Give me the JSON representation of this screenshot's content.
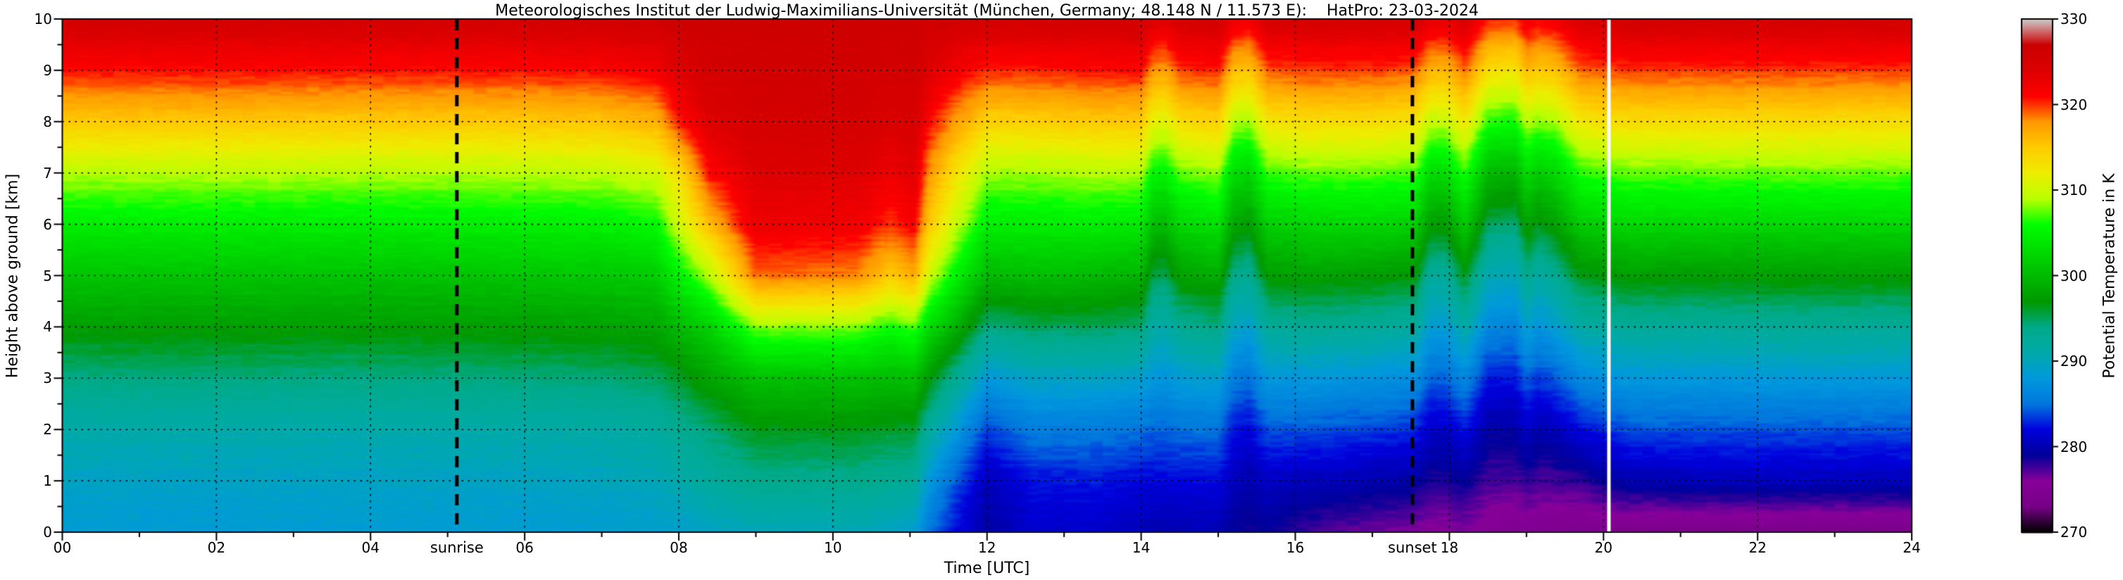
{
  "header": {
    "title": "Meteorologisches Institut der Ludwig-Maximilians-Universität (München, Germany; 48.148 N / 11.573 E):    HatPro: 23-03-2024"
  },
  "chart_data": {
    "type": "heatmap",
    "title": "Meteorologisches Institut der Ludwig-Maximilians-Universität (München, Germany; 48.148 N / 11.573 E):    HatPro: 23-03-2024",
    "xlabel": "Time [UTC]",
    "ylabel": "Height above ground [km]",
    "colorbar_label": "Potential Temperature in K",
    "x_range": [
      0,
      24
    ],
    "y_range": [
      0,
      10
    ],
    "z_range": [
      270,
      330
    ],
    "grid": {
      "x_step": 2,
      "y_step": 1,
      "style": "dotted"
    },
    "x_ticks": [
      {
        "value": 0,
        "label": "00"
      },
      {
        "value": 2,
        "label": "02"
      },
      {
        "value": 4,
        "label": "04"
      },
      {
        "value": 6,
        "label": "06"
      },
      {
        "value": 8,
        "label": "08"
      },
      {
        "value": 10,
        "label": "10"
      },
      {
        "value": 12,
        "label": "12"
      },
      {
        "value": 14,
        "label": "14"
      },
      {
        "value": 16,
        "label": "16"
      },
      {
        "value": 18,
        "label": "18"
      },
      {
        "value": 20,
        "label": "20"
      },
      {
        "value": 22,
        "label": "22"
      },
      {
        "value": 24,
        "label": "24"
      }
    ],
    "y_ticks": [
      0,
      1,
      2,
      3,
      4,
      5,
      6,
      7,
      8,
      9,
      10
    ],
    "colorbar_ticks": [
      270,
      280,
      290,
      300,
      310,
      320,
      330
    ],
    "annotations": {
      "sunrise": {
        "time": 5.12,
        "label": "sunrise"
      },
      "sunset": {
        "time": 17.52,
        "label": "sunset"
      },
      "data_gap_time": 20.07
    },
    "colormap": {
      "name": "nipy-spectral-like",
      "stops": [
        [
          270,
          "#000000"
        ],
        [
          273,
          "#770088"
        ],
        [
          276,
          "#880099"
        ],
        [
          279,
          "#000099"
        ],
        [
          282,
          "#0000DD"
        ],
        [
          285,
          "#0077DD"
        ],
        [
          288,
          "#0099DD"
        ],
        [
          291,
          "#00AAAA"
        ],
        [
          294,
          "#00AA88"
        ],
        [
          297,
          "#009900"
        ],
        [
          300,
          "#00BB00"
        ],
        [
          303,
          "#00DD00"
        ],
        [
          306,
          "#00FF00"
        ],
        [
          309,
          "#BBFF00"
        ],
        [
          312,
          "#EEEE00"
        ],
        [
          315,
          "#FFCC00"
        ],
        [
          318,
          "#FF9900"
        ],
        [
          321,
          "#FF0000"
        ],
        [
          324,
          "#DD0000"
        ],
        [
          327,
          "#CC0000"
        ],
        [
          330,
          "#CCCCCC"
        ]
      ]
    },
    "heights_km": [
      0,
      1,
      2,
      3,
      4,
      5,
      6,
      7,
      8,
      9,
      10
    ],
    "profiles": [
      {
        "t": 0.0,
        "theta": [
          288.5,
          289.5,
          291,
          294,
          297.5,
          301,
          304.5,
          309,
          315,
          321,
          325.5
        ]
      },
      {
        "t": 2.0,
        "theta": [
          288.3,
          289.4,
          291.1,
          294.1,
          297.5,
          301,
          304.6,
          309.1,
          315.1,
          321,
          325.5
        ]
      },
      {
        "t": 4.0,
        "theta": [
          288.5,
          289.5,
          291,
          294,
          297.4,
          300.9,
          304.4,
          309,
          315,
          320.9,
          325.4
        ]
      },
      {
        "t": 6.0,
        "theta": [
          288.5,
          289.6,
          291.2,
          294.2,
          297.6,
          301.1,
          304.6,
          309.1,
          315.1,
          321,
          325.5
        ]
      },
      {
        "t": 7.0,
        "theta": [
          288.7,
          289.8,
          291.4,
          294.4,
          297.8,
          301.3,
          304.8,
          309.3,
          315.3,
          321.2,
          325.6
        ]
      },
      {
        "t": 7.7,
        "theta": [
          288.8,
          290.2,
          292,
          295,
          298.2,
          301.8,
          305.5,
          310.5,
          316.5,
          322,
          326
        ]
      },
      {
        "t": 8.0,
        "theta": [
          289,
          291,
          293,
          296,
          300,
          305,
          310,
          313.5,
          320.5,
          324,
          326.5
        ]
      },
      {
        "t": 8.4,
        "theta": [
          289.5,
          292,
          294.5,
          298,
          302,
          309,
          316,
          321,
          324,
          325.5,
          326.5
        ]
      },
      {
        "t": 9.0,
        "theta": [
          290,
          293.5,
          296.5,
          300.5,
          308,
          319,
          322.5,
          324,
          325.5,
          326,
          326.5
        ]
      },
      {
        "t": 10.3,
        "theta": [
          290,
          293.5,
          296.5,
          300.5,
          308,
          318.5,
          322,
          324,
          325.5,
          326,
          326.5
        ]
      },
      {
        "t": 10.75,
        "theta": [
          289.5,
          293,
          296,
          300,
          306,
          315,
          320,
          322.5,
          324.5,
          325.5,
          326.5
        ]
      },
      {
        "t": 11.05,
        "theta": [
          289,
          292.5,
          296,
          300.5,
          307,
          317,
          321.5,
          323.5,
          325,
          326,
          326.5
        ]
      },
      {
        "t": 11.25,
        "theta": [
          285,
          288,
          292,
          297,
          303,
          310,
          315,
          318,
          321,
          324,
          326
        ]
      },
      {
        "t": 11.6,
        "theta": [
          282,
          284,
          288,
          293,
          299,
          305,
          309.5,
          313,
          317.5,
          322,
          325.8
        ]
      },
      {
        "t": 12.0,
        "theta": [
          279.5,
          280.5,
          283.5,
          288,
          294,
          300,
          304.5,
          308.5,
          314.5,
          320.5,
          325.5
        ]
      },
      {
        "t": 12.6,
        "theta": [
          281,
          282.5,
          285.5,
          289.5,
          295,
          300.5,
          304.5,
          308.5,
          314.5,
          320.5,
          325.5
        ]
      },
      {
        "t": 13.4,
        "theta": [
          281,
          282.5,
          285.5,
          289.5,
          295,
          300,
          304.5,
          309,
          315,
          321,
          325.5
        ]
      },
      {
        "t": 14.0,
        "theta": [
          280.5,
          282,
          285,
          289,
          294.5,
          299.5,
          304,
          309,
          315,
          321,
          325.5
        ]
      },
      {
        "t": 14.15,
        "theta": [
          280,
          282,
          284.5,
          288,
          291.5,
          295.5,
          300.5,
          305.5,
          311.5,
          318,
          324
        ]
      },
      {
        "t": 14.3,
        "theta": [
          280,
          282,
          284.5,
          287.5,
          291,
          295,
          300,
          305,
          311,
          317.5,
          323.5
        ]
      },
      {
        "t": 14.5,
        "theta": [
          280.2,
          282,
          285,
          288.5,
          293,
          298,
          302.5,
          307.5,
          313.5,
          320,
          325
        ]
      },
      {
        "t": 15.0,
        "theta": [
          280,
          282,
          285,
          289,
          294,
          299,
          303.5,
          308.5,
          314.5,
          320.5,
          325.5
        ]
      },
      {
        "t": 15.2,
        "theta": [
          279,
          280.5,
          282.5,
          285.5,
          289.5,
          293.5,
          298,
          303,
          309,
          316,
          322.5
        ]
      },
      {
        "t": 15.4,
        "theta": [
          278.5,
          280,
          282,
          285,
          289,
          293,
          297.5,
          302.5,
          308.5,
          315.5,
          322
        ]
      },
      {
        "t": 15.65,
        "theta": [
          279,
          281,
          284,
          288,
          292.5,
          297.5,
          302,
          307,
          313,
          319.5,
          325
        ]
      },
      {
        "t": 16.2,
        "theta": [
          277.5,
          280.5,
          284,
          288,
          293,
          298,
          302.5,
          307.5,
          313.5,
          320,
          325
        ]
      },
      {
        "t": 17.0,
        "theta": [
          276.5,
          280,
          283.5,
          287.5,
          292.5,
          297.5,
          302.5,
          307.5,
          313.5,
          320,
          325
        ]
      },
      {
        "t": 17.55,
        "theta": [
          276,
          279.5,
          283,
          287,
          292,
          297,
          302,
          307,
          313,
          319.5,
          325
        ]
      },
      {
        "t": 17.75,
        "theta": [
          275.5,
          278.5,
          281,
          284.5,
          288.5,
          292.5,
          297.5,
          303,
          309.5,
          316.5,
          323
        ]
      },
      {
        "t": 17.95,
        "theta": [
          275.5,
          278.5,
          281,
          284.5,
          288.5,
          292.5,
          297.5,
          303,
          309.5,
          316.5,
          323
        ]
      },
      {
        "t": 18.2,
        "theta": [
          276,
          279,
          282.5,
          286.5,
          291.5,
          296.5,
          301.5,
          306.5,
          312.5,
          319,
          324.5
        ]
      },
      {
        "t": 18.5,
        "theta": [
          275,
          277.5,
          279.5,
          282.5,
          286.5,
          290.5,
          295,
          300,
          306.5,
          313.5,
          320.5
        ]
      },
      {
        "t": 18.85,
        "theta": [
          274.5,
          277.5,
          279.5,
          282.5,
          286,
          290,
          294.5,
          299.5,
          306,
          313,
          320
        ]
      },
      {
        "t": 19.0,
        "theta": [
          275,
          278,
          281,
          284.5,
          289,
          293.5,
          298,
          303,
          309,
          316,
          322.5
        ]
      },
      {
        "t": 19.15,
        "theta": [
          274.5,
          277.5,
          280,
          283.5,
          287.5,
          291.5,
          296.5,
          301.5,
          308,
          315,
          321.5
        ]
      },
      {
        "t": 19.35,
        "theta": [
          274.5,
          277.5,
          280.5,
          284,
          288.5,
          293,
          297.5,
          302.5,
          308.5,
          315.5,
          322
        ]
      },
      {
        "t": 19.7,
        "theta": [
          274,
          278,
          282,
          286.5,
          291.5,
          296.5,
          301.5,
          306.5,
          312.5,
          319,
          324.5
        ]
      },
      {
        "t": 20.3,
        "theta": [
          274,
          280,
          284,
          288,
          292.5,
          297.5,
          302.5,
          307.5,
          313.5,
          320,
          325.5
        ]
      },
      {
        "t": 21.5,
        "theta": [
          273.5,
          280.5,
          284,
          288,
          292.5,
          297.5,
          302.5,
          307.5,
          313.5,
          320,
          325.5
        ]
      },
      {
        "t": 22.5,
        "theta": [
          273.5,
          280.5,
          284,
          288.2,
          292.7,
          297.7,
          302.5,
          307.7,
          313.7,
          320,
          325.5
        ]
      },
      {
        "t": 24.0,
        "theta": [
          273.5,
          280.5,
          284,
          288,
          292.5,
          297.5,
          302.5,
          307.5,
          313.5,
          320,
          325.5
        ]
      }
    ]
  }
}
